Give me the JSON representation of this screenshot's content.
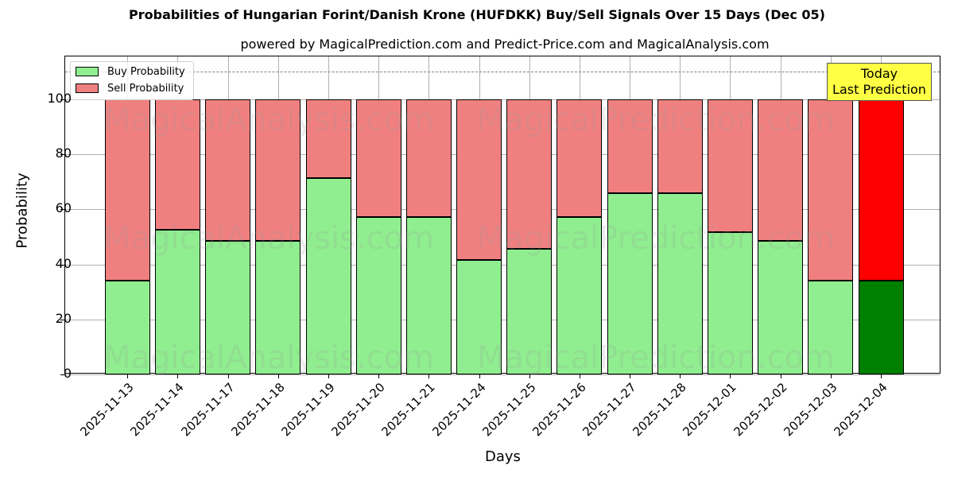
{
  "title": "Probabilities of Hungarian Forint/Danish Krone (HUFDKK) Buy/Sell Signals Over 15 Days (Dec 05)",
  "subtitle": "powered by MagicalPrediction.com and Predict-Price.com and MagicalAnalysis.com",
  "legend": {
    "buy": "Buy Probability",
    "sell": "Sell Probability"
  },
  "annotation": {
    "line1": "Today",
    "line2": "Last Prediction"
  },
  "watermarks": [
    "MagicalAnalysis.com",
    "MagicalPrediction.com"
  ],
  "colors": {
    "buy": "#90ee90",
    "sell": "#f08080",
    "today_buy": "#008000",
    "today_sell": "#ff0000",
    "annotation_bg": "#ffff44"
  },
  "chart_data": {
    "type": "bar",
    "stacked": true,
    "title": "Probabilities of Hungarian Forint/Danish Krone (HUFDKK) Buy/Sell Signals Over 15 Days (Dec 05)",
    "subtitle": "powered by MagicalPrediction.com and Predict-Price.com and MagicalAnalysis.com",
    "xlabel": "Days",
    "ylabel": "Probability",
    "ylim": [
      0,
      115
    ],
    "yticks": [
      0,
      20,
      40,
      60,
      80,
      100
    ],
    "grid": true,
    "legend_position": "upper left",
    "reference_line": {
      "y": 110,
      "style": "dashed"
    },
    "categories": [
      "2025-11-13",
      "2025-11-14",
      "2025-11-17",
      "2025-11-18",
      "2025-11-19",
      "2025-11-20",
      "2025-11-21",
      "2025-11-24",
      "2025-11-25",
      "2025-11-26",
      "2025-11-27",
      "2025-11-28",
      "2025-12-01",
      "2025-12-02",
      "2025-12-03",
      "2025-12-04"
    ],
    "series": [
      {
        "name": "Buy Probability",
        "values": [
          34.2,
          52.5,
          48.6,
          48.6,
          71.5,
          57.3,
          57.3,
          41.7,
          45.6,
          57.3,
          66.0,
          66.0,
          51.6,
          48.5,
          34.2,
          34.2
        ]
      },
      {
        "name": "Sell Probability",
        "values": [
          65.8,
          47.5,
          51.4,
          51.4,
          28.5,
          42.7,
          42.7,
          58.3,
          54.4,
          42.7,
          34.0,
          34.0,
          48.4,
          51.5,
          65.8,
          65.8
        ]
      }
    ],
    "highlight": {
      "index": 15,
      "label": "Today\nLast Prediction"
    }
  }
}
